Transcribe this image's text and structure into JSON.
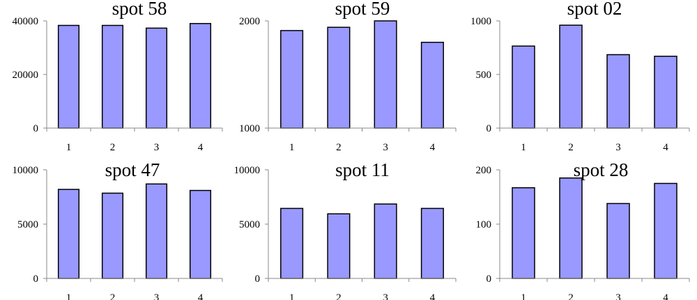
{
  "bar_color": "#9999ff",
  "bar_stroke": "#000000",
  "chart_data": [
    {
      "type": "bar",
      "title": "spot 58",
      "categories": [
        "1",
        "2",
        "3",
        "4"
      ],
      "values": [
        38300,
        38300,
        37300,
        39000
      ],
      "ylim": [
        0,
        40000
      ],
      "yticks": [
        "0",
        "20000",
        "40000"
      ],
      "ytick_values": [
        0,
        20000,
        40000
      ],
      "grid": false
    },
    {
      "type": "bar",
      "title": "spot 59",
      "categories": [
        "1",
        "2",
        "3",
        "4"
      ],
      "values": [
        1910,
        1940,
        2000,
        1800
      ],
      "ylim": [
        1000,
        2000
      ],
      "yticks": [
        "1000",
        "2000"
      ],
      "ytick_values": [
        1000,
        2000
      ],
      "grid": false
    },
    {
      "type": "bar",
      "title": "spot 02",
      "categories": [
        "1",
        "2",
        "3",
        "4"
      ],
      "values": [
        765,
        960,
        685,
        670
      ],
      "ylim": [
        0,
        1000
      ],
      "yticks": [
        "0",
        "500",
        "1000"
      ],
      "ytick_values": [
        0,
        500,
        1000
      ],
      "grid": false
    },
    {
      "type": "bar",
      "title": "spot 47",
      "categories": [
        "1",
        "2",
        "3",
        "4"
      ],
      "values": [
        8200,
        7850,
        8700,
        8100
      ],
      "ylim": [
        0,
        10000
      ],
      "yticks": [
        "0",
        "5000",
        "10000"
      ],
      "ytick_values": [
        0,
        5000,
        10000
      ],
      "grid": false
    },
    {
      "type": "bar",
      "title": "spot 11",
      "categories": [
        "1",
        "2",
        "3",
        "4"
      ],
      "values": [
        6450,
        5950,
        6850,
        6450
      ],
      "ylim": [
        0,
        10000
      ],
      "yticks": [
        "0",
        "5000",
        "10000"
      ],
      "ytick_values": [
        0,
        5000,
        10000
      ],
      "grid": false
    },
    {
      "type": "bar",
      "title": "spot 28",
      "categories": [
        "1",
        "2",
        "3",
        "4"
      ],
      "values": [
        167,
        185,
        138,
        175
      ],
      "ylim": [
        0,
        200
      ],
      "yticks": [
        "0",
        "100",
        "200"
      ],
      "ytick_values": [
        0,
        100,
        200
      ],
      "grid": false
    }
  ]
}
